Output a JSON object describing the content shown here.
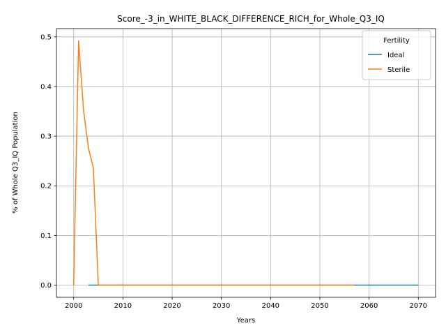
{
  "chart_data": {
    "type": "line",
    "title": "Score_-3_in_WHITE_BLACK_DIFFERENCE_RICH_for_Whole_Q3_IQ",
    "xlabel": "Years",
    "ylabel": "% of Whole Q3_IQ Population",
    "xlim": [
      1996.5,
      2073.5
    ],
    "ylim": [
      -0.0246,
      0.5166
    ],
    "xticks": [
      2000,
      2010,
      2020,
      2030,
      2040,
      2050,
      2060,
      2070
    ],
    "yticks": [
      0.0,
      0.1,
      0.2,
      0.3,
      0.4,
      0.5
    ],
    "xtick_labels": [
      "2000",
      "2010",
      "2020",
      "2030",
      "2040",
      "2050",
      "2060",
      "2070"
    ],
    "ytick_labels": [
      "0.0",
      "0.1",
      "0.2",
      "0.3",
      "0.4",
      "0.5"
    ],
    "grid": true,
    "legend": {
      "title": "Fertility",
      "placement": "top-right"
    },
    "series": [
      {
        "name": "Ideal",
        "color": "#1f77b4",
        "x": [
          2003,
          2010,
          2020,
          2030,
          2040,
          2050,
          2060,
          2070
        ],
        "y": [
          0,
          0,
          0,
          0,
          0,
          0,
          0,
          0
        ]
      },
      {
        "name": "Sterile",
        "color": "#ff7f0e",
        "x": [
          2000,
          2001,
          2002,
          2003,
          2004,
          2005,
          2010,
          2020,
          2030,
          2040,
          2050,
          2057
        ],
        "y": [
          0.0,
          0.492,
          0.352,
          0.276,
          0.236,
          0.0,
          0.0,
          0.0,
          0.0,
          0.0,
          0.0,
          0.0
        ]
      }
    ]
  }
}
